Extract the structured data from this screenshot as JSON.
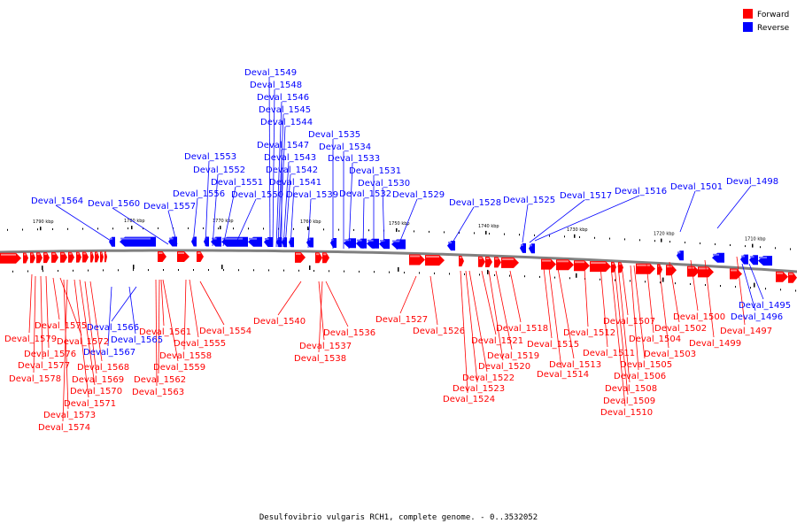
{
  "legend": {
    "forward": {
      "label": "Forward",
      "color": "#ff0000"
    },
    "reverse": {
      "label": "Reverse",
      "color": "#0000ff"
    }
  },
  "caption": "Desulfovibrio vulgaris RCH1, complete genome. - 0..3532052",
  "colors": {
    "forward": "#ff0000",
    "forward_light": "#ff8080",
    "reverse": "#0000ff",
    "reverse_light": "#6f6fff",
    "axis": "#808080"
  },
  "ticks": [
    "1790 kbp",
    "1780 kbp",
    "1770 kbp",
    "1760 kbp",
    "1750 kbp",
    "1740 kbp",
    "1730 kbp",
    "1720 kbp",
    "1710 kbp"
  ],
  "reverse_labels": [
    "Deval_1564",
    "Deval_1560",
    "Deval_1557",
    "Deval_1556",
    "Deval_1553",
    "Deval_1552",
    "Deval_1551",
    "Deval_1550",
    "Deval_1549",
    "Deval_1548",
    "Deval_1546",
    "Deval_1545",
    "Deval_1544",
    "Deval_1547",
    "Deval_1543",
    "Deval_1542",
    "Deval_1541",
    "Deval_1539",
    "Deval_1535",
    "Deval_1534",
    "Deval_1533",
    "Deval_1532",
    "Deval_1531",
    "Deval_1530",
    "Deval_1529",
    "Deval_1528",
    "Deval_1525",
    "Deval_1517",
    "Deval_1516",
    "Deval_1501",
    "Deval_1498",
    "Deval_1566",
    "Deval_1565",
    "Deval_1567",
    "Deval_1495",
    "Deval_1496"
  ],
  "forward_labels": [
    "Deval_1579",
    "Deval_1578",
    "Deval_1577",
    "Deval_1576",
    "Deval_1575",
    "Deval_1572",
    "Deval_1573",
    "Deval_1574",
    "Deval_1571",
    "Deval_1570",
    "Deval_1569",
    "Deval_1568",
    "Deval_1561",
    "Deval_1563",
    "Deval_1562",
    "Deval_1559",
    "Deval_1558",
    "Deval_1555",
    "Deval_1554",
    "Deval_1540",
    "Deval_1537",
    "Deval_1538",
    "Deval_1536",
    "Deval_1527",
    "Deval_1526",
    "Deval_1524",
    "Deval_1523",
    "Deval_1522",
    "Deval_1521",
    "Deval_1520",
    "Deval_1519",
    "Deval_1518",
    "Deval_1515",
    "Deval_1514",
    "Deval_1513",
    "Deval_1512",
    "Deval_1511",
    "Deval_1510",
    "Deval_1509",
    "Deval_1508",
    "Deval_1507",
    "Deval_1506",
    "Deval_1505",
    "Deval_1504",
    "Deval_1503",
    "Deval_1502",
    "Deval_1500",
    "Deval_1499",
    "Deval_1497"
  ]
}
